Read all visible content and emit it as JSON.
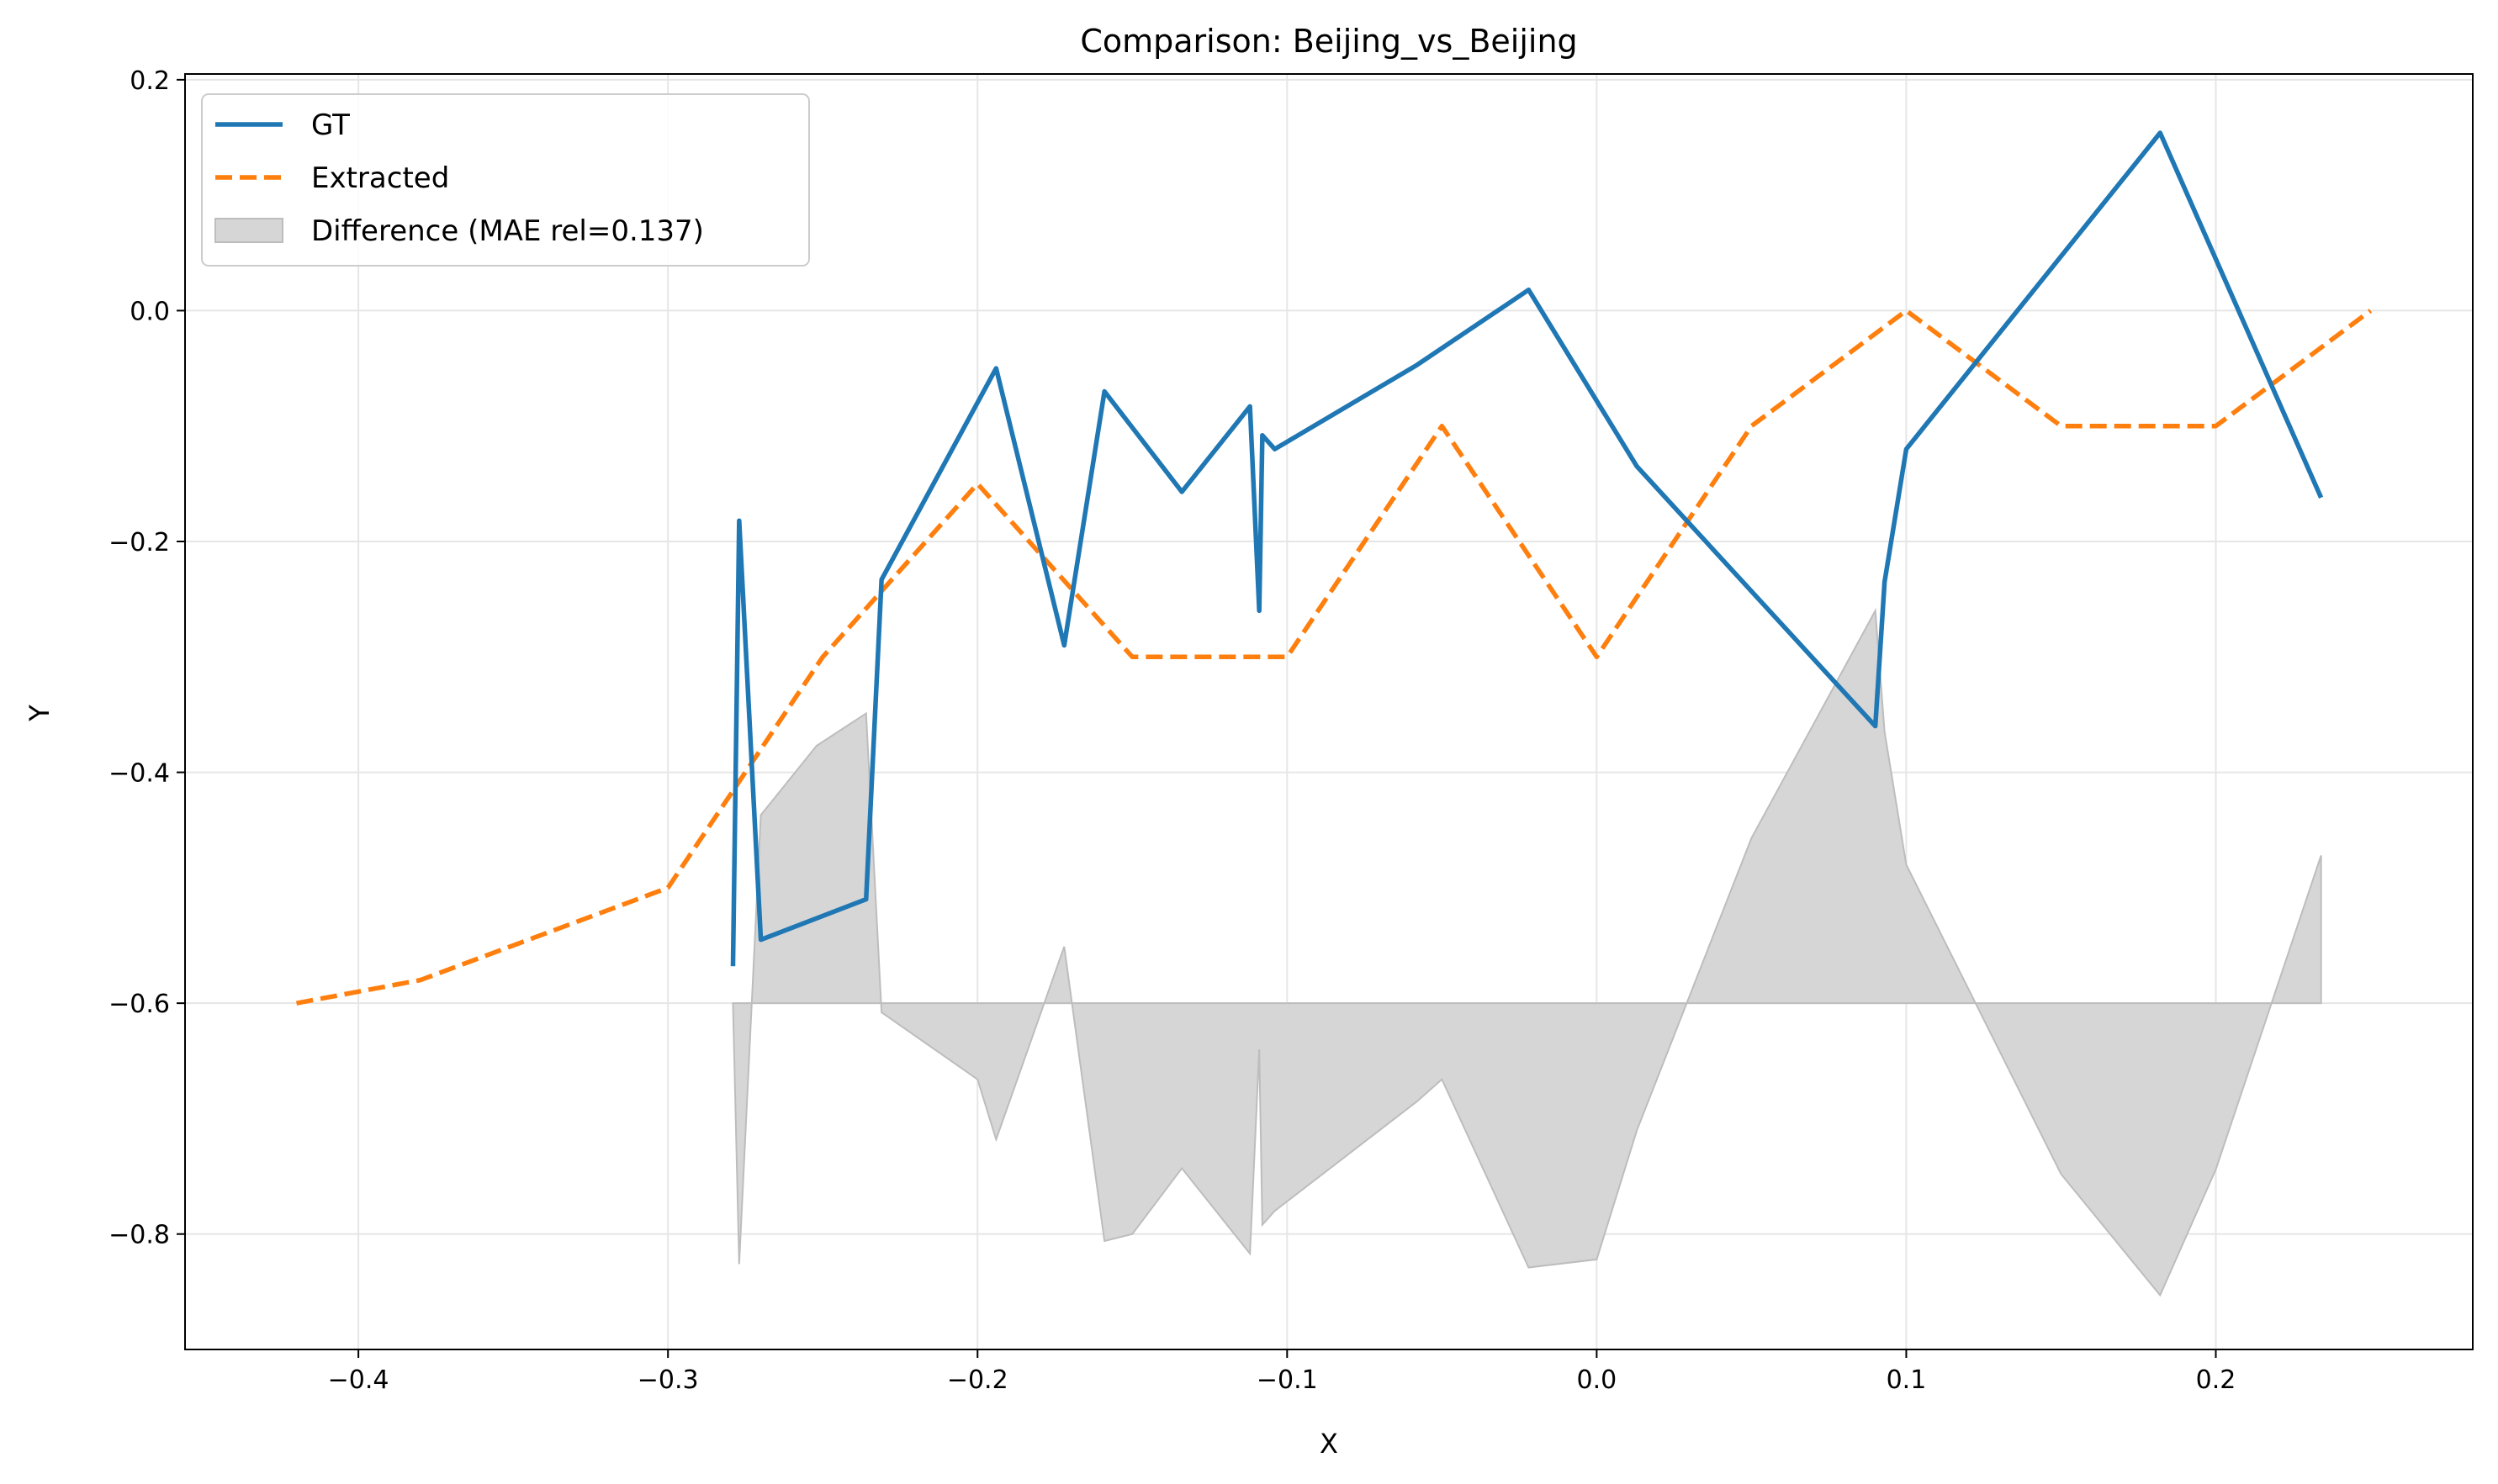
{
  "chart_data": {
    "type": "line",
    "title": "Comparison: Beijing_vs_Beijing",
    "xlabel": "X",
    "ylabel": "Y",
    "xlim": [
      -0.456,
      0.283
    ],
    "ylim": [
      -0.9,
      0.205
    ],
    "xticks": [
      -0.4,
      -0.3,
      -0.2,
      -0.1,
      0.0,
      0.1,
      0.2
    ],
    "yticks": [
      -0.8,
      -0.6,
      -0.4,
      -0.2,
      0.0,
      0.2
    ],
    "xtick_labels": [
      "−0.4",
      "−0.3",
      "−0.2",
      "−0.1",
      "0.0",
      "0.1",
      "0.2"
    ],
    "ytick_labels": [
      "−0.8",
      "−0.6",
      "−0.4",
      "−0.2",
      "0.0",
      "0.2"
    ],
    "grid": true,
    "legend_position": "top-left",
    "series": [
      {
        "name": "GT",
        "color": "#1f77b4",
        "style": "solid",
        "x": [
          -0.279,
          -0.277,
          -0.27,
          -0.236,
          -0.231,
          -0.194,
          -0.172,
          -0.159,
          -0.134,
          -0.112,
          -0.109,
          -0.108,
          -0.104,
          -0.058,
          -0.022,
          0.013,
          0.09,
          0.093,
          0.1,
          0.182,
          0.234
        ],
        "y": [
          -0.568,
          -0.182,
          -0.545,
          -0.51,
          -0.233,
          -0.05,
          -0.29,
          -0.07,
          -0.157,
          -0.083,
          -0.26,
          -0.108,
          -0.12,
          -0.047,
          0.018,
          -0.135,
          -0.36,
          -0.235,
          -0.12,
          0.154,
          -0.162
        ]
      },
      {
        "name": "Extracted",
        "color": "#ff7f0e",
        "style": "dashed",
        "x": [
          -0.42,
          -0.38,
          -0.3,
          -0.25,
          -0.2,
          -0.15,
          -0.1,
          -0.05,
          0.0,
          0.05,
          0.1,
          0.15,
          0.2,
          0.25
        ],
        "y": [
          -0.6,
          -0.58,
          -0.5,
          -0.3,
          -0.15,
          -0.3,
          -0.3,
          -0.1,
          -0.3,
          -0.1,
          0.0,
          -0.1,
          -0.1,
          0.0
        ]
      }
    ],
    "difference": {
      "name": "Difference (MAE rel=0.137)",
      "color": "#d6d6d6",
      "edge_color": "#bdbdbd",
      "baseline": -0.6,
      "x": [
        -0.279,
        -0.277,
        -0.27,
        -0.252,
        -0.236,
        -0.231,
        -0.2,
        -0.194,
        -0.172,
        -0.159,
        -0.15,
        -0.134,
        -0.112,
        -0.109,
        -0.108,
        -0.104,
        -0.058,
        -0.05,
        -0.022,
        0.0,
        0.013,
        0.05,
        0.09,
        0.093,
        0.1,
        0.15,
        0.182,
        0.2,
        0.234
      ],
      "y": [
        -0.6,
        -0.826,
        -0.437,
        -0.377,
        -0.349,
        -0.608,
        -0.666,
        -0.718,
        -0.551,
        -0.806,
        -0.8,
        -0.743,
        -0.817,
        -0.64,
        -0.792,
        -0.78,
        -0.685,
        -0.666,
        -0.829,
        -0.822,
        -0.71,
        -0.457,
        -0.26,
        -0.365,
        -0.48,
        -0.748,
        -0.853,
        -0.744,
        -0.472
      ]
    }
  }
}
